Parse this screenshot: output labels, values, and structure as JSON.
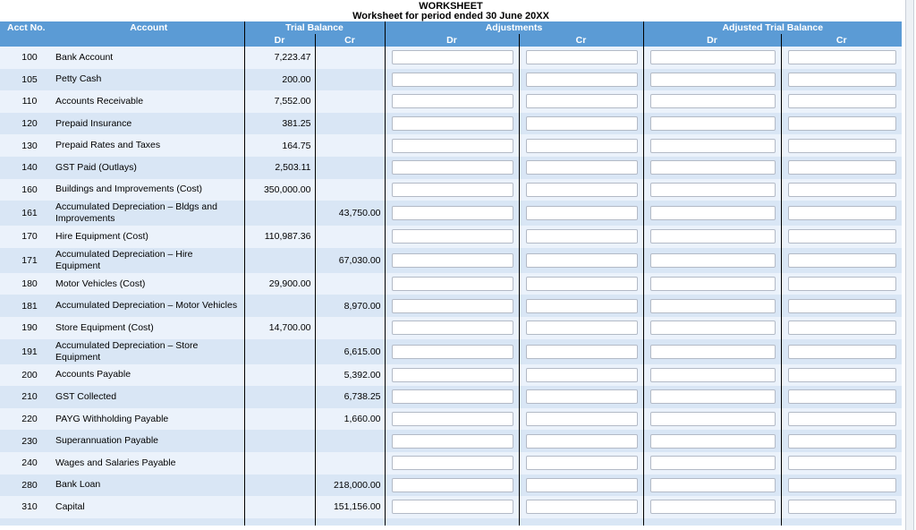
{
  "page_title": "WORKSHEET",
  "page_subtitle": "Worksheet for period ended 30 June 20XX",
  "table": {
    "columns": {
      "acct_no": "Acct No.",
      "account": "Account",
      "groups": [
        {
          "label": "Trial Balance",
          "dr": "Dr",
          "cr": "Cr"
        },
        {
          "label": "Adjustments",
          "dr": "Dr",
          "cr": "Cr"
        },
        {
          "label": "Adjusted Trial Balance",
          "dr": "Dr",
          "cr": "Cr"
        }
      ]
    },
    "rows": [
      {
        "acct_no": "100",
        "account": "Bank Account",
        "tb_dr": "7,223.47",
        "tb_cr": "",
        "adj_dr": "",
        "adj_cr": "",
        "atb_dr": "",
        "atb_cr": ""
      },
      {
        "acct_no": "105",
        "account": "Petty Cash",
        "tb_dr": "200.00",
        "tb_cr": "",
        "adj_dr": "",
        "adj_cr": "",
        "atb_dr": "",
        "atb_cr": ""
      },
      {
        "acct_no": "110",
        "account": "Accounts Receivable",
        "tb_dr": "7,552.00",
        "tb_cr": "",
        "adj_dr": "",
        "adj_cr": "",
        "atb_dr": "",
        "atb_cr": ""
      },
      {
        "acct_no": "120",
        "account": "Prepaid Insurance",
        "tb_dr": "381.25",
        "tb_cr": "",
        "adj_dr": "",
        "adj_cr": "",
        "atb_dr": "",
        "atb_cr": ""
      },
      {
        "acct_no": "130",
        "account": "Prepaid Rates and Taxes",
        "tb_dr": "164.75",
        "tb_cr": "",
        "adj_dr": "",
        "adj_cr": "",
        "atb_dr": "",
        "atb_cr": ""
      },
      {
        "acct_no": "140",
        "account": "GST Paid (Outlays)",
        "tb_dr": "2,503.11",
        "tb_cr": "",
        "adj_dr": "",
        "adj_cr": "",
        "atb_dr": "",
        "atb_cr": ""
      },
      {
        "acct_no": "160",
        "account": "Buildings and Improvements (Cost)",
        "tb_dr": "350,000.00",
        "tb_cr": "",
        "adj_dr": "",
        "adj_cr": "",
        "atb_dr": "",
        "atb_cr": ""
      },
      {
        "acct_no": "161",
        "account": "Accumulated Depreciation – Bldgs and Improvements",
        "tb_dr": "",
        "tb_cr": "43,750.00",
        "adj_dr": "",
        "adj_cr": "",
        "atb_dr": "",
        "atb_cr": ""
      },
      {
        "acct_no": "170",
        "account": "Hire Equipment (Cost)",
        "tb_dr": "110,987.36",
        "tb_cr": "",
        "adj_dr": "",
        "adj_cr": "",
        "atb_dr": "",
        "atb_cr": ""
      },
      {
        "acct_no": "171",
        "account": "Accumulated Depreciation – Hire Equipment",
        "tb_dr": "",
        "tb_cr": "67,030.00",
        "adj_dr": "",
        "adj_cr": "",
        "atb_dr": "",
        "atb_cr": ""
      },
      {
        "acct_no": "180",
        "account": "Motor Vehicles (Cost)",
        "tb_dr": "29,900.00",
        "tb_cr": "",
        "adj_dr": "",
        "adj_cr": "",
        "atb_dr": "",
        "atb_cr": ""
      },
      {
        "acct_no": "181",
        "account": "Accumulated Depreciation – Motor Vehicles",
        "tb_dr": "",
        "tb_cr": "8,970.00",
        "adj_dr": "",
        "adj_cr": "",
        "atb_dr": "",
        "atb_cr": ""
      },
      {
        "acct_no": "190",
        "account": "Store Equipment (Cost)",
        "tb_dr": "14,700.00",
        "tb_cr": "",
        "adj_dr": "",
        "adj_cr": "",
        "atb_dr": "",
        "atb_cr": ""
      },
      {
        "acct_no": "191",
        "account": "Accumulated Depreciation – Store Equipment",
        "tb_dr": "",
        "tb_cr": "6,615.00",
        "adj_dr": "",
        "adj_cr": "",
        "atb_dr": "",
        "atb_cr": ""
      },
      {
        "acct_no": "200",
        "account": "Accounts Payable",
        "tb_dr": "",
        "tb_cr": "5,392.00",
        "adj_dr": "",
        "adj_cr": "",
        "atb_dr": "",
        "atb_cr": ""
      },
      {
        "acct_no": "210",
        "account": "GST Collected",
        "tb_dr": "",
        "tb_cr": "6,738.25",
        "adj_dr": "",
        "adj_cr": "",
        "atb_dr": "",
        "atb_cr": ""
      },
      {
        "acct_no": "220",
        "account": "PAYG Withholding Payable",
        "tb_dr": "",
        "tb_cr": "1,660.00",
        "adj_dr": "",
        "adj_cr": "",
        "atb_dr": "",
        "atb_cr": ""
      },
      {
        "acct_no": "230",
        "account": "Superannuation Payable",
        "tb_dr": "",
        "tb_cr": "",
        "adj_dr": "",
        "adj_cr": "",
        "atb_dr": "",
        "atb_cr": ""
      },
      {
        "acct_no": "240",
        "account": "Wages and Salaries Payable",
        "tb_dr": "",
        "tb_cr": "",
        "adj_dr": "",
        "adj_cr": "",
        "atb_dr": "",
        "atb_cr": ""
      },
      {
        "acct_no": "280",
        "account": "Bank Loan",
        "tb_dr": "",
        "tb_cr": "218,000.00",
        "adj_dr": "",
        "adj_cr": "",
        "atb_dr": "",
        "atb_cr": ""
      },
      {
        "acct_no": "310",
        "account": "Capital",
        "tb_dr": "",
        "tb_cr": "151,156.00",
        "adj_dr": "",
        "adj_cr": "",
        "atb_dr": "",
        "atb_cr": ""
      }
    ]
  },
  "colors": {
    "header_bg": "#5b9bd5",
    "header_text": "#ffffff",
    "row_light": "#ebf2fb",
    "row_dark": "#d9e6f5",
    "grid_line": "#000000",
    "input_border": "#b3bac6",
    "scrollbar_track": "#edf1f5",
    "scrollbar_border": "#c9d0d9"
  }
}
